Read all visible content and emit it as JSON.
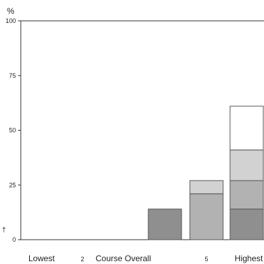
{
  "chart_data": {
    "type": "bar",
    "stacked": true,
    "title": "",
    "xlabel": "",
    "ylabel": "%",
    "ylim": [
      0,
      100
    ],
    "yticks": [
      0,
      25,
      50,
      75,
      100
    ],
    "grid": false,
    "side_marker": "†",
    "categories": [
      "Lowest",
      "2",
      "Course Overall",
      "",
      "5",
      "Highest"
    ],
    "series": [
      {
        "values": [
          0,
          0,
          0,
          14,
          0,
          14
        ],
        "color": "#8f8f8f"
      },
      {
        "values": [
          0,
          0,
          0,
          0,
          21,
          13
        ],
        "color": "#b2b2b2"
      },
      {
        "values": [
          0,
          0,
          0,
          0,
          6,
          14
        ],
        "color": "#d2d2d2"
      },
      {
        "values": [
          0,
          0,
          0,
          0,
          0,
          20
        ],
        "color": "#ffffff"
      }
    ]
  }
}
